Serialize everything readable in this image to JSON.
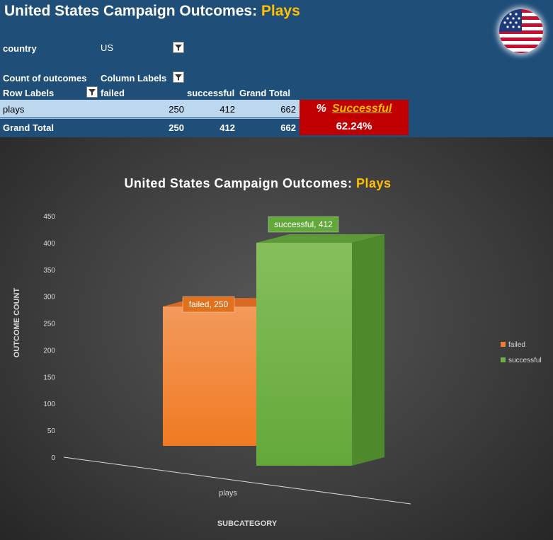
{
  "header": {
    "title_main": "United States Campaign Outcomes: ",
    "title_highlight": "Plays"
  },
  "filter": {
    "label": "country",
    "value": "US"
  },
  "pivot": {
    "count_label": "Count of outcomes",
    "column_labels": "Column Labels",
    "row_labels": "Row Labels",
    "columns": [
      "failed",
      "successful",
      "Grand Total"
    ],
    "rows": [
      {
        "label": "plays",
        "failed": "250",
        "successful": "412",
        "total": "662"
      }
    ],
    "grand_total": {
      "label": "Grand Total",
      "failed": "250",
      "successful": "412",
      "total": "662"
    }
  },
  "percent_box": {
    "symbol": "%",
    "label": "Successful",
    "value": "62.24%"
  },
  "chart_data": {
    "type": "bar",
    "title": "United States Campaign Outcomes: ",
    "title_highlight": "Plays",
    "categories": [
      "plays"
    ],
    "series": [
      {
        "name": "failed",
        "values": [
          250
        ],
        "color": "#ed7d31",
        "data_label": "failed, 250"
      },
      {
        "name": "successful",
        "values": [
          412
        ],
        "color": "#70ad47",
        "data_label": "successful, 412"
      }
    ],
    "xlabel": "SUBCATEGORY",
    "ylabel": "OUTCOME COUNT",
    "ylim": [
      0,
      450
    ],
    "yticks": [
      0,
      50,
      100,
      150,
      200,
      250,
      300,
      350,
      400,
      450
    ],
    "grid": false,
    "legend": "right",
    "three_d": true
  }
}
